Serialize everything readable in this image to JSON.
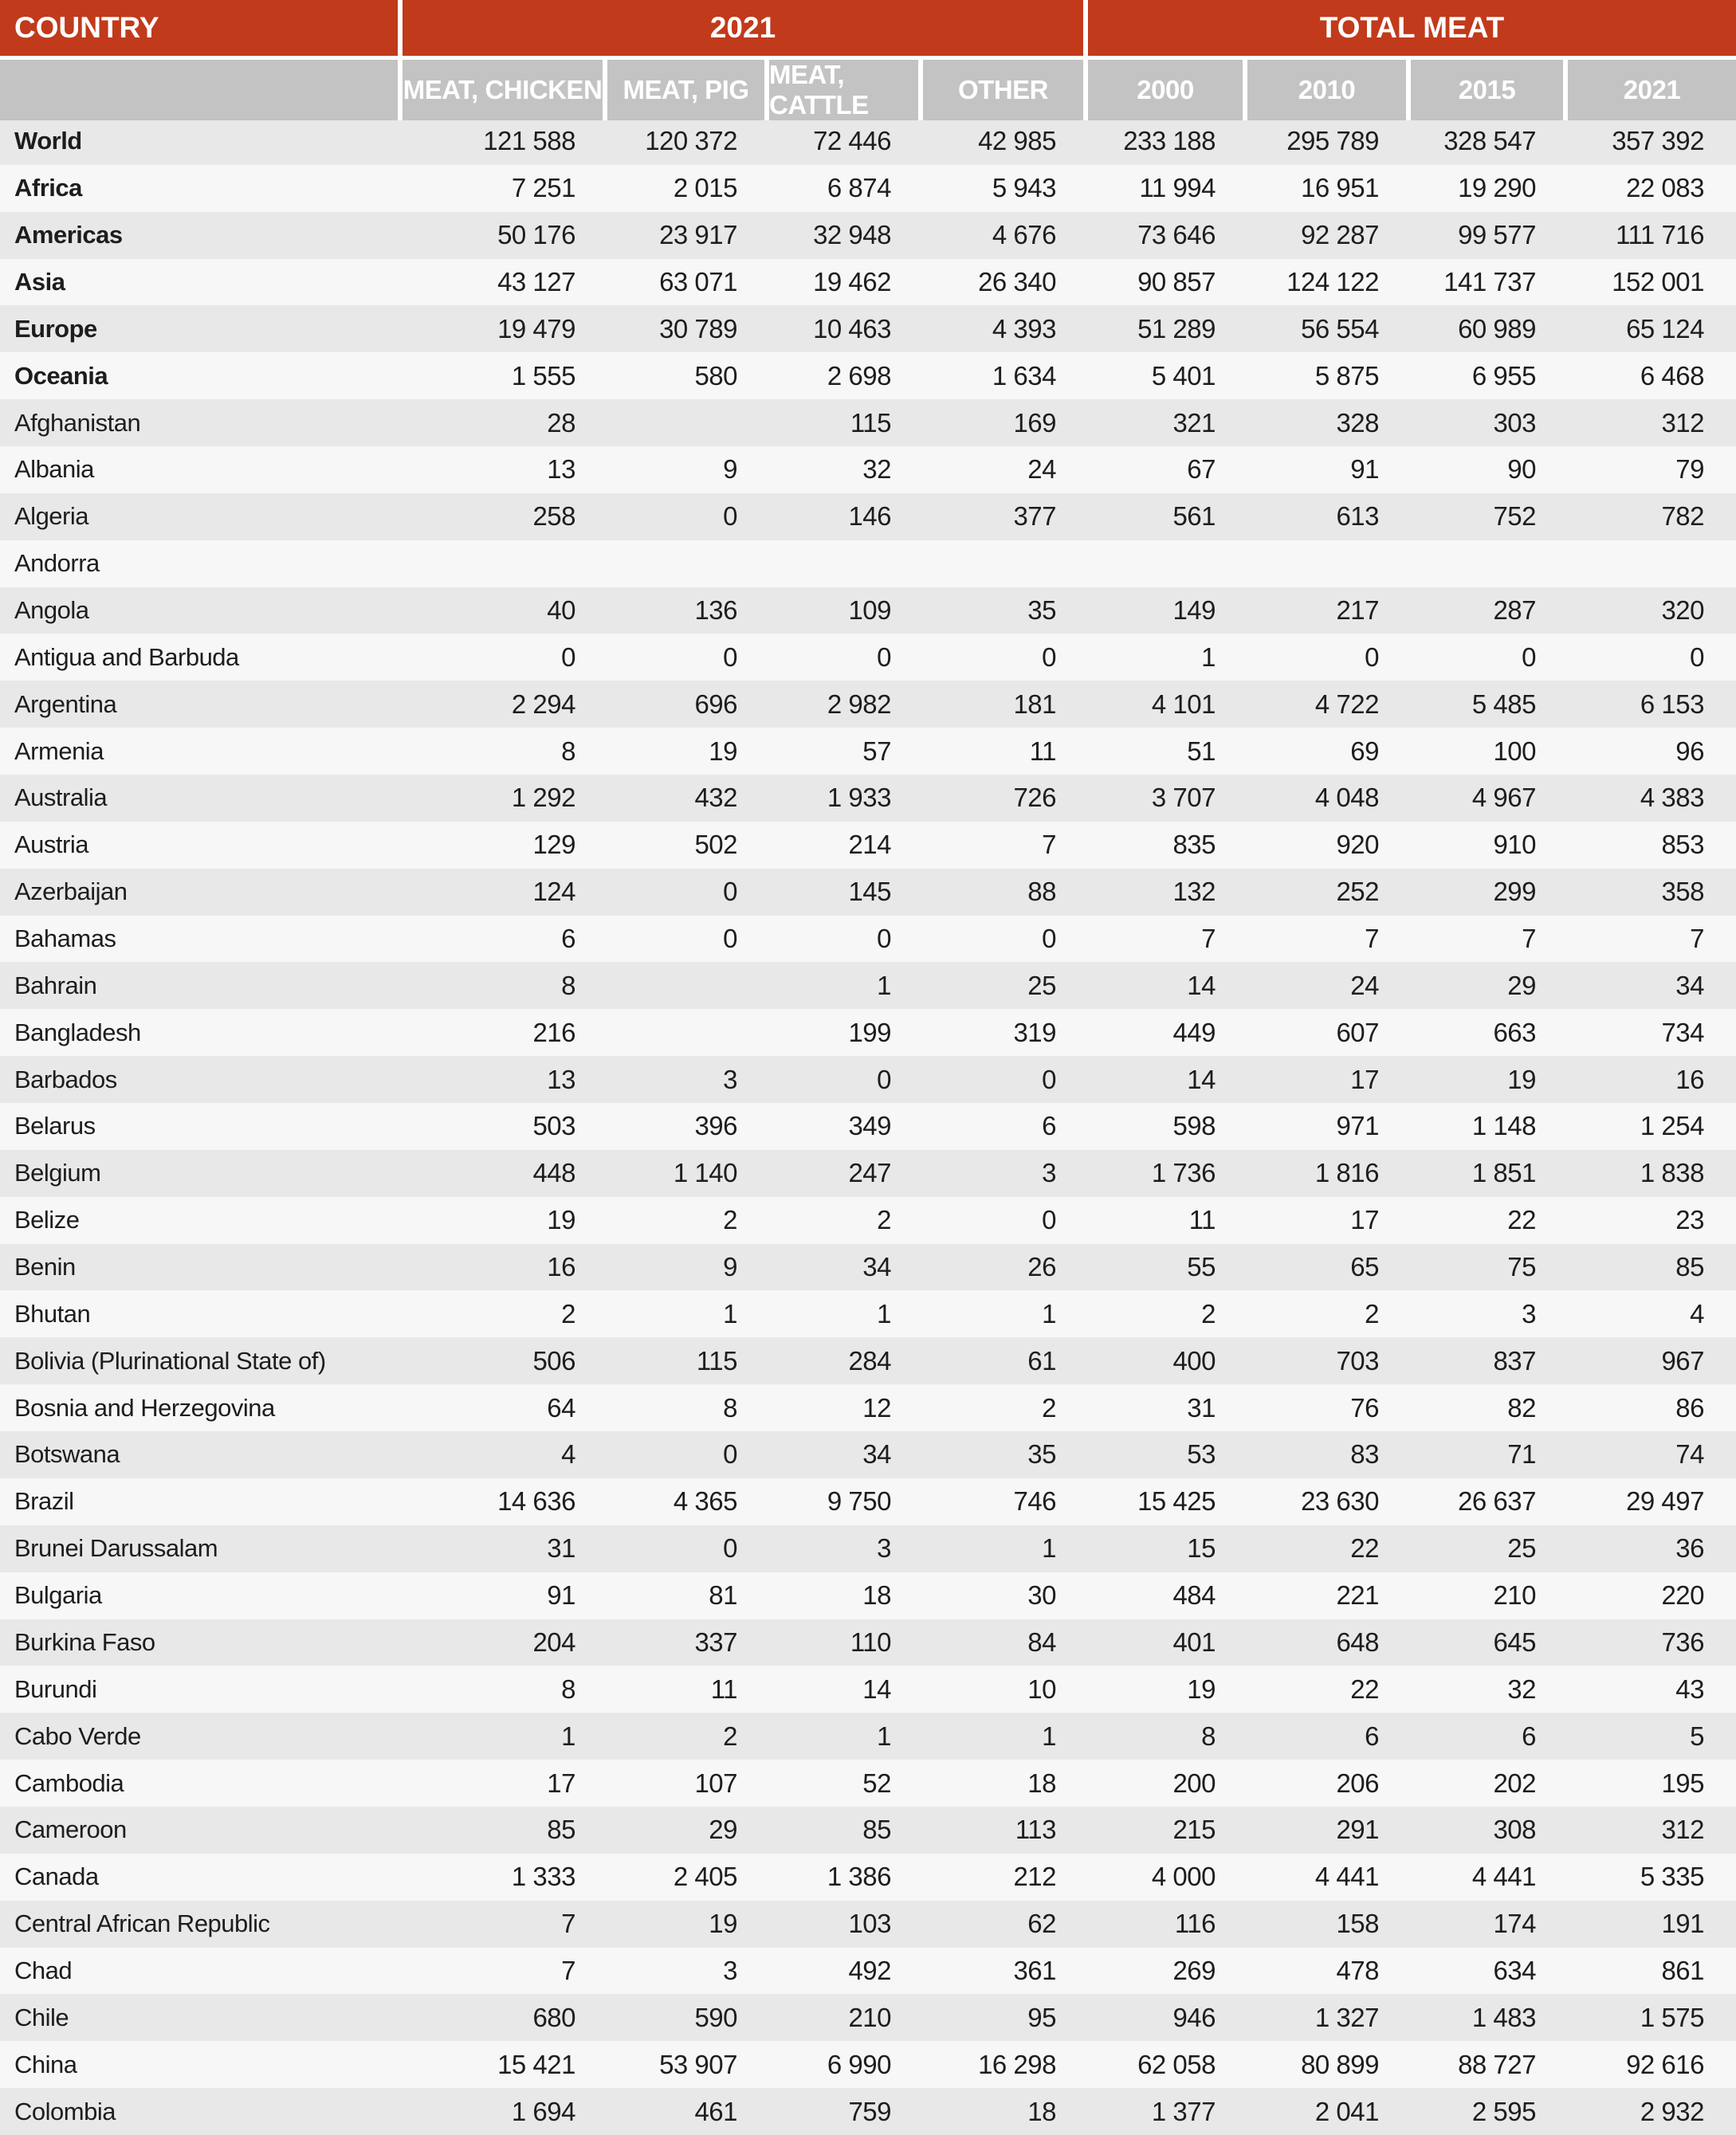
{
  "header": {
    "country_label": "COUNTRY",
    "group_2021": "2021",
    "group_total": "TOTAL MEAT",
    "sub_2021": [
      "MEAT, CHICKEN",
      "MEAT, PIG",
      "MEAT, CATTLE",
      "OTHER"
    ],
    "sub_total": [
      "2000",
      "2010",
      "2015",
      "2021"
    ]
  },
  "colors": {
    "header_red": "#c13a1b",
    "header_gray": "#c3c3c3",
    "row_gray": "#e8e8e8",
    "row_white": "#f7f7f7",
    "header_text": "#ffffff",
    "body_text": "#1d1d1d"
  },
  "table": {
    "rows": [
      {
        "country": "World",
        "bold": true,
        "values": [
          "121 588",
          "120 372",
          "72 446",
          "42 985",
          "233 188",
          "295 789",
          "328 547",
          "357 392"
        ]
      },
      {
        "country": "Africa",
        "bold": true,
        "values": [
          "7 251",
          "2 015",
          "6 874",
          "5 943",
          "11 994",
          "16 951",
          "19 290",
          "22 083"
        ]
      },
      {
        "country": "Americas",
        "bold": true,
        "values": [
          "50 176",
          "23 917",
          "32 948",
          "4 676",
          "73 646",
          "92 287",
          "99 577",
          "111 716"
        ]
      },
      {
        "country": "Asia",
        "bold": true,
        "values": [
          "43 127",
          "63 071",
          "19 462",
          "26 340",
          "90 857",
          "124 122",
          "141 737",
          "152 001"
        ]
      },
      {
        "country": "Europe",
        "bold": true,
        "values": [
          "19 479",
          "30 789",
          "10 463",
          "4 393",
          "51 289",
          "56 554",
          "60 989",
          "65 124"
        ]
      },
      {
        "country": "Oceania",
        "bold": true,
        "values": [
          "1 555",
          "580",
          "2 698",
          "1 634",
          "5 401",
          "5 875",
          "6 955",
          "6 468"
        ]
      },
      {
        "country": "Afghanistan",
        "bold": false,
        "values": [
          "28",
          "",
          "115",
          "169",
          "321",
          "328",
          "303",
          "312"
        ]
      },
      {
        "country": "Albania",
        "bold": false,
        "values": [
          "13",
          "9",
          "32",
          "24",
          "67",
          "91",
          "90",
          "79"
        ]
      },
      {
        "country": "Algeria",
        "bold": false,
        "values": [
          "258",
          "0",
          "146",
          "377",
          "561",
          "613",
          "752",
          "782"
        ]
      },
      {
        "country": "Andorra",
        "bold": false,
        "values": [
          "",
          "",
          "",
          "",
          "",
          "",
          "",
          ""
        ]
      },
      {
        "country": "Angola",
        "bold": false,
        "values": [
          "40",
          "136",
          "109",
          "35",
          "149",
          "217",
          "287",
          "320"
        ]
      },
      {
        "country": "Antigua and Barbuda",
        "bold": false,
        "values": [
          "0",
          "0",
          "0",
          "0",
          "1",
          "0",
          "0",
          "0"
        ]
      },
      {
        "country": "Argentina",
        "bold": false,
        "values": [
          "2 294",
          "696",
          "2 982",
          "181",
          "4 101",
          "4 722",
          "5 485",
          "6 153"
        ]
      },
      {
        "country": "Armenia",
        "bold": false,
        "values": [
          "8",
          "19",
          "57",
          "11",
          "51",
          "69",
          "100",
          "96"
        ]
      },
      {
        "country": "Australia",
        "bold": false,
        "values": [
          "1 292",
          "432",
          "1 933",
          "726",
          "3 707",
          "4 048",
          "4 967",
          "4 383"
        ]
      },
      {
        "country": "Austria",
        "bold": false,
        "values": [
          "129",
          "502",
          "214",
          "7",
          "835",
          "920",
          "910",
          "853"
        ]
      },
      {
        "country": "Azerbaijan",
        "bold": false,
        "values": [
          "124",
          "0",
          "145",
          "88",
          "132",
          "252",
          "299",
          "358"
        ]
      },
      {
        "country": "Bahamas",
        "bold": false,
        "values": [
          "6",
          "0",
          "0",
          "0",
          "7",
          "7",
          "7",
          "7"
        ]
      },
      {
        "country": "Bahrain",
        "bold": false,
        "values": [
          "8",
          "",
          "1",
          "25",
          "14",
          "24",
          "29",
          "34"
        ]
      },
      {
        "country": "Bangladesh",
        "bold": false,
        "values": [
          "216",
          "",
          "199",
          "319",
          "449",
          "607",
          "663",
          "734"
        ]
      },
      {
        "country": "Barbados",
        "bold": false,
        "values": [
          "13",
          "3",
          "0",
          "0",
          "14",
          "17",
          "19",
          "16"
        ]
      },
      {
        "country": "Belarus",
        "bold": false,
        "values": [
          "503",
          "396",
          "349",
          "6",
          "598",
          "971",
          "1 148",
          "1 254"
        ]
      },
      {
        "country": "Belgium",
        "bold": false,
        "values": [
          "448",
          "1 140",
          "247",
          "3",
          "1 736",
          "1 816",
          "1 851",
          "1 838"
        ]
      },
      {
        "country": "Belize",
        "bold": false,
        "values": [
          "19",
          "2",
          "2",
          "0",
          "11",
          "17",
          "22",
          "23"
        ]
      },
      {
        "country": "Benin",
        "bold": false,
        "values": [
          "16",
          "9",
          "34",
          "26",
          "55",
          "65",
          "75",
          "85"
        ]
      },
      {
        "country": "Bhutan",
        "bold": false,
        "values": [
          "2",
          "1",
          "1",
          "1",
          "2",
          "2",
          "3",
          "4"
        ]
      },
      {
        "country": "Bolivia (Plurinational State of)",
        "bold": false,
        "values": [
          "506",
          "115",
          "284",
          "61",
          "400",
          "703",
          "837",
          "967"
        ]
      },
      {
        "country": "Bosnia and Herzegovina",
        "bold": false,
        "values": [
          "64",
          "8",
          "12",
          "2",
          "31",
          "76",
          "82",
          "86"
        ]
      },
      {
        "country": "Botswana",
        "bold": false,
        "values": [
          "4",
          "0",
          "34",
          "35",
          "53",
          "83",
          "71",
          "74"
        ]
      },
      {
        "country": "Brazil",
        "bold": false,
        "values": [
          "14 636",
          "4 365",
          "9 750",
          "746",
          "15 425",
          "23 630",
          "26 637",
          "29 497"
        ]
      },
      {
        "country": "Brunei Darussalam",
        "bold": false,
        "values": [
          "31",
          "0",
          "3",
          "1",
          "15",
          "22",
          "25",
          "36"
        ]
      },
      {
        "country": "Bulgaria",
        "bold": false,
        "values": [
          "91",
          "81",
          "18",
          "30",
          "484",
          "221",
          "210",
          "220"
        ]
      },
      {
        "country": "Burkina Faso",
        "bold": false,
        "values": [
          "204",
          "337",
          "110",
          "84",
          "401",
          "648",
          "645",
          "736"
        ]
      },
      {
        "country": "Burundi",
        "bold": false,
        "values": [
          "8",
          "11",
          "14",
          "10",
          "19",
          "22",
          "32",
          "43"
        ]
      },
      {
        "country": "Cabo Verde",
        "bold": false,
        "values": [
          "1",
          "2",
          "1",
          "1",
          "8",
          "6",
          "6",
          "5"
        ]
      },
      {
        "country": "Cambodia",
        "bold": false,
        "values": [
          "17",
          "107",
          "52",
          "18",
          "200",
          "206",
          "202",
          "195"
        ]
      },
      {
        "country": "Cameroon",
        "bold": false,
        "values": [
          "85",
          "29",
          "85",
          "113",
          "215",
          "291",
          "308",
          "312"
        ]
      },
      {
        "country": "Canada",
        "bold": false,
        "values": [
          "1 333",
          "2 405",
          "1 386",
          "212",
          "4 000",
          "4 441",
          "4 441",
          "5 335"
        ]
      },
      {
        "country": "Central African Republic",
        "bold": false,
        "values": [
          "7",
          "19",
          "103",
          "62",
          "116",
          "158",
          "174",
          "191"
        ]
      },
      {
        "country": "Chad",
        "bold": false,
        "values": [
          "7",
          "3",
          "492",
          "361",
          "269",
          "478",
          "634",
          "861"
        ]
      },
      {
        "country": "Chile",
        "bold": false,
        "values": [
          "680",
          "590",
          "210",
          "95",
          "946",
          "1 327",
          "1 483",
          "1 575"
        ]
      },
      {
        "country": "China",
        "bold": false,
        "values": [
          "15 421",
          "53 907",
          "6 990",
          "16 298",
          "62 058",
          "80 899",
          "88 727",
          "92 616"
        ]
      },
      {
        "country": "Colombia",
        "bold": false,
        "values": [
          "1 694",
          "461",
          "759",
          "18",
          "1 377",
          "2 041",
          "2 595",
          "2 932"
        ]
      }
    ]
  }
}
